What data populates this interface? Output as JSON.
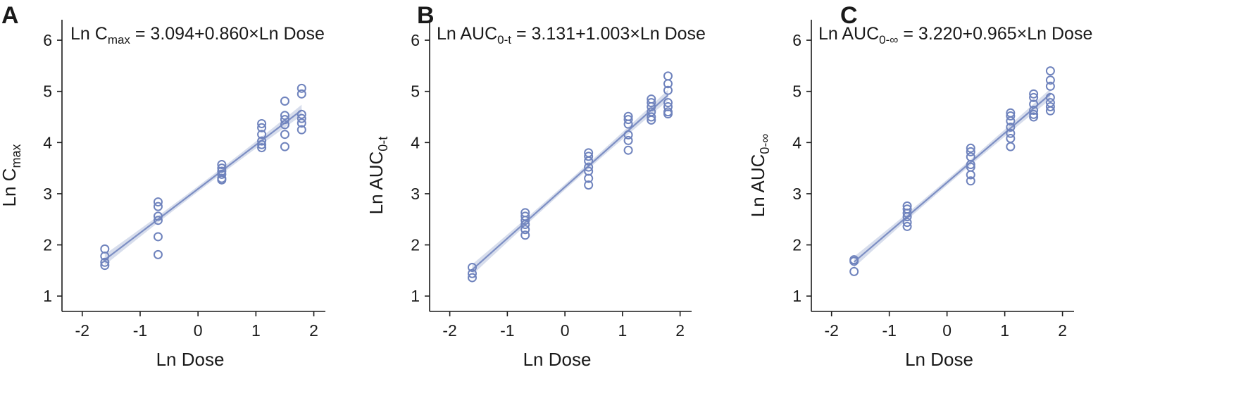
{
  "colors": {
    "marker": "#6F83BD",
    "fit_line": "#7D8FC4",
    "ci_band": "#C9D1E5",
    "axis": "#1a1a1a"
  },
  "chart_data": [
    {
      "type": "scatter",
      "panel": "A",
      "equation": {
        "prefix": "Ln C",
        "sub": "max",
        "rest": " = 3.094+0.860×Ln Dose"
      },
      "xlabel": "Ln Dose",
      "ylabel": {
        "main": "Ln C",
        "sub": "max"
      },
      "xlim": [
        -2.35,
        2.2
      ],
      "ylim": [
        0.7,
        6.4
      ],
      "xticks": [
        -2,
        -1,
        0,
        1,
        2
      ],
      "yticks": [
        1,
        2,
        3,
        4,
        5,
        6
      ],
      "fit": {
        "intercept": 3.094,
        "slope": 0.86,
        "x_range": [
          -1.61,
          1.79
        ]
      },
      "points": [
        [
          -1.61,
          1.92
        ],
        [
          -1.61,
          1.78
        ],
        [
          -1.61,
          1.66
        ],
        [
          -1.61,
          1.6
        ],
        [
          -0.69,
          2.84
        ],
        [
          -0.69,
          2.75
        ],
        [
          -0.69,
          2.56
        ],
        [
          -0.69,
          2.48
        ],
        [
          -0.69,
          2.16
        ],
        [
          -0.69,
          1.81
        ],
        [
          0.41,
          3.57
        ],
        [
          0.41,
          3.5
        ],
        [
          0.41,
          3.44
        ],
        [
          0.41,
          3.38
        ],
        [
          0.41,
          3.3
        ],
        [
          0.41,
          3.27
        ],
        [
          1.1,
          4.37
        ],
        [
          1.1,
          4.29
        ],
        [
          1.1,
          4.16
        ],
        [
          1.1,
          4.03
        ],
        [
          1.1,
          3.96
        ],
        [
          1.1,
          3.9
        ],
        [
          1.5,
          4.81
        ],
        [
          1.5,
          4.53
        ],
        [
          1.5,
          4.45
        ],
        [
          1.5,
          4.35
        ],
        [
          1.5,
          4.16
        ],
        [
          1.5,
          3.92
        ],
        [
          1.79,
          5.06
        ],
        [
          1.79,
          4.95
        ],
        [
          1.79,
          4.55
        ],
        [
          1.79,
          4.47
        ],
        [
          1.79,
          4.38
        ],
        [
          1.79,
          4.25
        ]
      ]
    },
    {
      "type": "scatter",
      "panel": "B",
      "equation": {
        "prefix": "Ln AUC",
        "sub": "0-t",
        "rest": " = 3.131+1.003×Ln Dose"
      },
      "xlabel": "Ln Dose",
      "ylabel": {
        "main": "Ln AUC",
        "sub": "0-t"
      },
      "xlim": [
        -2.35,
        2.2
      ],
      "ylim": [
        0.7,
        6.4
      ],
      "xticks": [
        -2,
        -1,
        0,
        1,
        2
      ],
      "yticks": [
        1,
        2,
        3,
        4,
        5,
        6
      ],
      "fit": {
        "intercept": 3.131,
        "slope": 1.003,
        "x_range": [
          -1.61,
          1.79
        ]
      },
      "points": [
        [
          -1.61,
          1.56
        ],
        [
          -1.61,
          1.44
        ],
        [
          -1.61,
          1.36
        ],
        [
          -0.69,
          2.63
        ],
        [
          -0.69,
          2.56
        ],
        [
          -0.69,
          2.48
        ],
        [
          -0.69,
          2.4
        ],
        [
          -0.69,
          2.3
        ],
        [
          -0.69,
          2.19
        ],
        [
          0.41,
          3.8
        ],
        [
          0.41,
          3.73
        ],
        [
          0.41,
          3.64
        ],
        [
          0.41,
          3.52
        ],
        [
          0.41,
          3.44
        ],
        [
          0.41,
          3.3
        ],
        [
          0.41,
          3.17
        ],
        [
          1.1,
          4.51
        ],
        [
          1.1,
          4.45
        ],
        [
          1.1,
          4.36
        ],
        [
          1.1,
          4.15
        ],
        [
          1.1,
          4.04
        ],
        [
          1.1,
          3.85
        ],
        [
          1.5,
          4.85
        ],
        [
          1.5,
          4.78
        ],
        [
          1.5,
          4.7
        ],
        [
          1.5,
          4.6
        ],
        [
          1.5,
          4.5
        ],
        [
          1.5,
          4.44
        ],
        [
          1.79,
          5.3
        ],
        [
          1.79,
          5.15
        ],
        [
          1.79,
          5.02
        ],
        [
          1.79,
          4.78
        ],
        [
          1.79,
          4.7
        ],
        [
          1.79,
          4.6
        ],
        [
          1.79,
          4.56
        ]
      ]
    },
    {
      "type": "scatter",
      "panel": "C",
      "equation": {
        "prefix": "Ln AUC",
        "sub": "0-∞",
        "rest": " = 3.220+0.965×Ln Dose"
      },
      "xlabel": "Ln Dose",
      "ylabel": {
        "main": "Ln AUC",
        "sub": "0-∞"
      },
      "xlim": [
        -2.35,
        2.2
      ],
      "ylim": [
        0.7,
        6.4
      ],
      "xticks": [
        -2,
        -1,
        0,
        1,
        2
      ],
      "yticks": [
        1,
        2,
        3,
        4,
        5,
        6
      ],
      "fit": {
        "intercept": 3.22,
        "slope": 0.965,
        "x_range": [
          -1.61,
          1.79
        ]
      },
      "points": [
        [
          -1.61,
          1.71
        ],
        [
          -1.61,
          1.68
        ],
        [
          -1.61,
          1.48
        ],
        [
          -0.69,
          2.76
        ],
        [
          -0.69,
          2.7
        ],
        [
          -0.69,
          2.62
        ],
        [
          -0.69,
          2.55
        ],
        [
          -0.69,
          2.44
        ],
        [
          -0.69,
          2.36
        ],
        [
          0.41,
          3.89
        ],
        [
          0.41,
          3.82
        ],
        [
          0.41,
          3.72
        ],
        [
          0.41,
          3.57
        ],
        [
          0.41,
          3.52
        ],
        [
          0.41,
          3.37
        ],
        [
          0.41,
          3.25
        ],
        [
          1.1,
          4.58
        ],
        [
          1.1,
          4.52
        ],
        [
          1.1,
          4.42
        ],
        [
          1.1,
          4.3
        ],
        [
          1.1,
          4.18
        ],
        [
          1.1,
          4.08
        ],
        [
          1.1,
          3.92
        ],
        [
          1.5,
          4.95
        ],
        [
          1.5,
          4.88
        ],
        [
          1.5,
          4.75
        ],
        [
          1.5,
          4.63
        ],
        [
          1.5,
          4.55
        ],
        [
          1.5,
          4.5
        ],
        [
          1.79,
          5.4
        ],
        [
          1.79,
          5.22
        ],
        [
          1.79,
          5.1
        ],
        [
          1.79,
          4.88
        ],
        [
          1.79,
          4.78
        ],
        [
          1.79,
          4.7
        ],
        [
          1.79,
          4.62
        ]
      ]
    }
  ]
}
